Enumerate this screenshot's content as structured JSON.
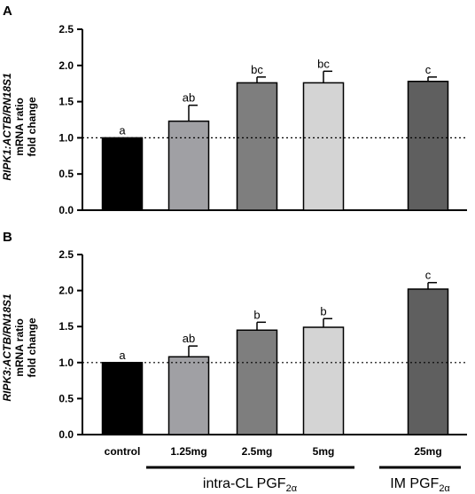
{
  "chart_data": [
    {
      "type": "bar",
      "panel": "A",
      "ylabel_gene": "RIPK1:ACTB/RN18S1",
      "ylabel_line2": "mRNA ratio",
      "ylabel_line3": "fold change",
      "ylim": [
        0,
        2.5
      ],
      "yticks": [
        "0.0",
        "0.5",
        "1.0",
        "1.5",
        "2.0",
        "2.5"
      ],
      "reference_line": 1.0,
      "categories": [
        "control",
        "1.25mg",
        "2.5mg",
        "5mg",
        "25mg"
      ],
      "values": [
        1.0,
        1.23,
        1.76,
        1.76,
        1.78
      ],
      "errors": [
        0.0,
        0.22,
        0.08,
        0.16,
        0.06
      ],
      "significance": [
        "a",
        "ab",
        "bc",
        "bc",
        "c"
      ],
      "colors": [
        "#000000",
        "#a0a0a4",
        "#7e7e7e",
        "#d4d4d4",
        "#5f5f5f"
      ],
      "grid": false
    },
    {
      "type": "bar",
      "panel": "B",
      "ylabel_gene": "RIPK3:ACTB/RN18S1",
      "ylabel_line2": "mRNA ratio",
      "ylabel_line3": "fold change",
      "ylim": [
        0,
        2.5
      ],
      "yticks": [
        "0.0",
        "0.5",
        "1.0",
        "1.5",
        "2.0",
        "2.5"
      ],
      "reference_line": 1.0,
      "categories": [
        "control",
        "1.25mg",
        "2.5mg",
        "5mg",
        "25mg"
      ],
      "values": [
        1.0,
        1.08,
        1.45,
        1.49,
        2.02
      ],
      "errors": [
        0.0,
        0.15,
        0.11,
        0.12,
        0.09
      ],
      "significance": [
        "a",
        "ab",
        "b",
        "b",
        "c"
      ],
      "colors": [
        "#000000",
        "#a0a0a4",
        "#7e7e7e",
        "#d4d4d4",
        "#5f5f5f"
      ],
      "grid": false
    }
  ],
  "x_categories": [
    "control",
    "1.25mg",
    "2.5mg",
    "5mg",
    "25mg"
  ],
  "groups": [
    {
      "base": "intra-CL PGF",
      "sub": "2α"
    },
    {
      "base": "IM PGF",
      "sub": "2α"
    }
  ]
}
